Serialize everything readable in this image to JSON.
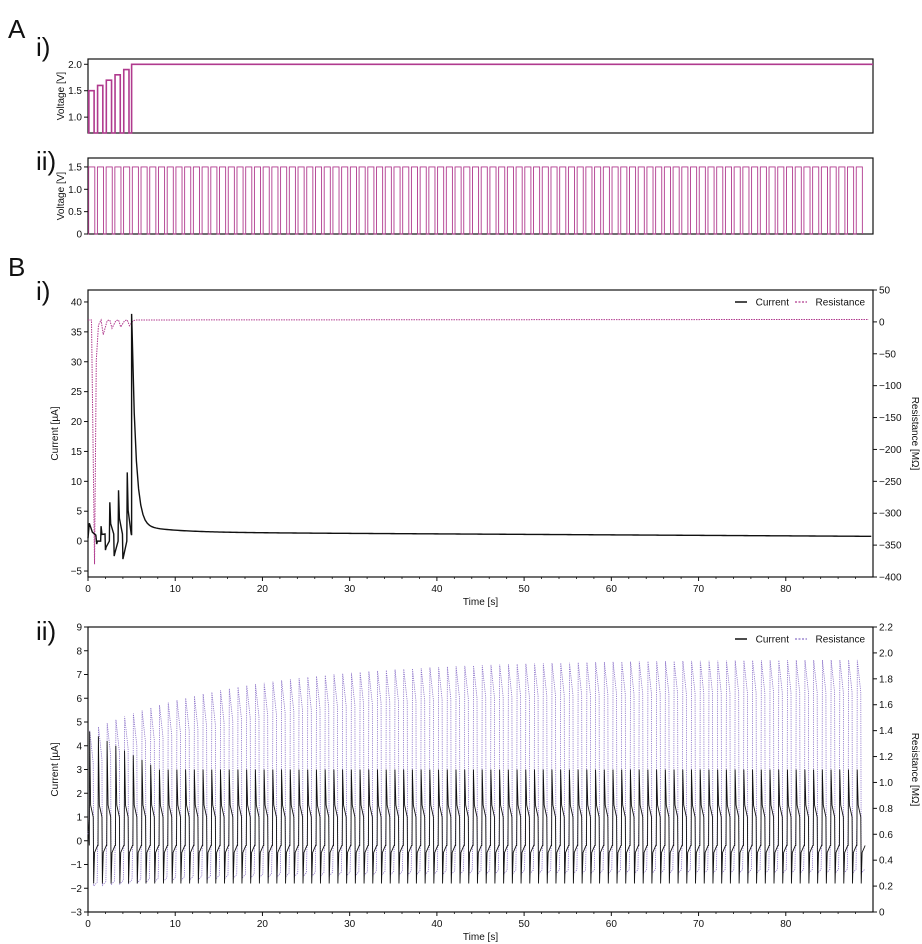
{
  "panel_labels": {
    "A": "A",
    "B": "B",
    "Ai": "i)",
    "Aii": "ii)",
    "Bi": "i)",
    "Bii": "ii)"
  },
  "colors": {
    "voltage": "#b03a8e",
    "current": "#111111",
    "resistance_i": "#b03a8e",
    "resistance_ii": "#8a70c8"
  },
  "chart_data": [
    {
      "id": "Ai",
      "type": "line",
      "ylabel": "Voltage [V]",
      "ylim": [
        0.7,
        2.1
      ],
      "yticks": [
        1.0,
        1.5,
        2.0
      ],
      "xlim": [
        0,
        90
      ],
      "series": [
        {
          "kind": "pulse-ramp",
          "pulse_levels": [
            1.5,
            1.6,
            1.7,
            1.8,
            1.9
          ],
          "low_level": 0.7,
          "pulse_period_s": 1.0,
          "pulse_width_s": 0.5,
          "hold_level": 2.0,
          "hold_start_s": 5.0,
          "hold_end_s": 90.0
        }
      ]
    },
    {
      "id": "Aii",
      "type": "line",
      "ylabel": "Voltage [V]",
      "ylim": [
        0,
        1.7
      ],
      "yticks": [
        0,
        0.5,
        1.0,
        1.5
      ],
      "xlim": [
        0,
        90
      ],
      "series": [
        {
          "kind": "pulse-train",
          "high": 1.5,
          "low": 0,
          "period_s": 1.0,
          "duty": 0.7,
          "count": 90
        }
      ]
    },
    {
      "id": "Bi",
      "type": "line",
      "xlabel": "Time [s]",
      "ylabel": "Current [µA]",
      "ylabel2": "Resistance [MΩ]",
      "xlim": [
        0,
        90
      ],
      "ylim": [
        -6,
        42
      ],
      "ylim2": [
        -400,
        50
      ],
      "xticks": [
        0,
        10,
        20,
        30,
        40,
        50,
        60,
        70,
        80
      ],
      "yticks": [
        -5,
        0,
        5,
        10,
        15,
        20,
        25,
        30,
        35,
        40
      ],
      "yticks2": [
        -400,
        -350,
        -300,
        -250,
        -200,
        -150,
        -100,
        -50,
        0,
        50
      ],
      "legend": {
        "current": "Current",
        "resistance": "Resistance",
        "placement": "top-right"
      },
      "series": [
        {
          "name": "Current",
          "axis": "left",
          "pulse_peaks": [
            2.5,
            6.5,
            8.5,
            11.5
          ],
          "pulse_troughs": [
            -0.5,
            -1.5,
            -2.5,
            -3.0
          ],
          "step_peak": 38,
          "step_time_s": 5.0,
          "settle_value": 1.5,
          "end_value": 0.8
        },
        {
          "name": "Resistance",
          "axis": "right",
          "first_dip": -380,
          "small_dips": [
            -20,
            -10,
            -8,
            -6
          ],
          "steady_value": 3
        }
      ]
    },
    {
      "id": "Bii",
      "type": "line",
      "xlabel": "Time [s]",
      "ylabel": "Current [µA]",
      "ylabel2": "Resistance [MΩ]",
      "xlim": [
        0,
        90
      ],
      "ylim": [
        -3,
        9
      ],
      "ylim2": [
        0,
        2.2
      ],
      "xticks": [
        0,
        10,
        20,
        30,
        40,
        50,
        60,
        70,
        80
      ],
      "yticks": [
        -3,
        -2,
        -1,
        0,
        1,
        2,
        3,
        4,
        5,
        6,
        7,
        8,
        9
      ],
      "yticks2": [
        0,
        0.2,
        0.4,
        0.6,
        0.8,
        1.0,
        1.2,
        1.4,
        1.6,
        1.8,
        2.0,
        2.2
      ],
      "legend": {
        "current": "Current",
        "resistance": "Resistance",
        "placement": "top-right"
      },
      "series": [
        {
          "name": "Current",
          "axis": "left",
          "period_s": 1.0,
          "count": 89,
          "on_peak_start": 4.6,
          "on_peak_end": 3.0,
          "on_level": 1.0,
          "off_trough": -1.8,
          "off_level": -0.2
        },
        {
          "name": "Resistance",
          "axis": "right",
          "period_s": 1.0,
          "count": 89,
          "peak_start": 1.4,
          "peak_end": 1.95,
          "trough_start": 0.2,
          "trough_end": 0.3
        }
      ]
    }
  ]
}
